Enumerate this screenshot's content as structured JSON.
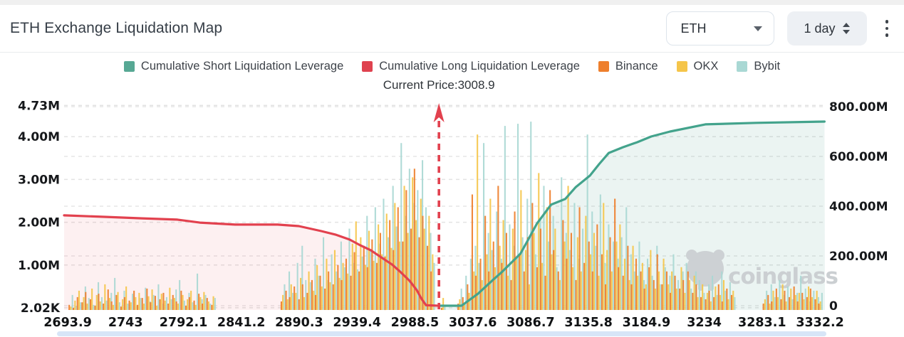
{
  "header": {
    "title": "ETH Exchange Liquidation Map",
    "symbol_select": {
      "value": "ETH"
    },
    "interval_select": {
      "value": "1 day"
    }
  },
  "legend": {
    "items": [
      {
        "label": "Cumulative Short Liquidation Leverage",
        "color": "#57a894"
      },
      {
        "label": "Cumulative Long Liquidation Leverage",
        "color": "#df424f"
      },
      {
        "label": "Binance",
        "color": "#ee7f2d"
      },
      {
        "label": "OKX",
        "color": "#f5c54a"
      },
      {
        "label": "Bybit",
        "color": "#a9d8d4"
      }
    ]
  },
  "current_price_label": "Current Price:3008.9",
  "watermark": "coinglass",
  "chart_data": {
    "type": "mixed-bar-line",
    "title": "ETH Exchange Liquidation Map",
    "current_price": 3008.9,
    "x_axis": {
      "min": 2693.9,
      "max": 3332.2,
      "ticks": [
        2693.9,
        2743,
        2792.1,
        2841.2,
        2890.3,
        2939.4,
        2988.5,
        3037.6,
        3086.7,
        3135.8,
        3184.9,
        3234,
        3283.1,
        3332.2
      ],
      "tick_labels": [
        "2693.9",
        "2743",
        "2792.1",
        "2841.2",
        "2890.3",
        "2939.4",
        "2988.5",
        "3037.6",
        "3086.7",
        "3135.8",
        "3184.9",
        "3234",
        "3283.1",
        "3332.2"
      ]
    },
    "left_axis": {
      "unit": "per-price liquidation leverage",
      "ticks": [
        {
          "label": "4.73M",
          "value": 4.73
        },
        {
          "label": "4.00M",
          "value": 4.0
        },
        {
          "label": "3.00M",
          "value": 3.0
        },
        {
          "label": "2.00M",
          "value": 2.0
        },
        {
          "label": "1.00M",
          "value": 1.0
        },
        {
          "label": "2.02K",
          "value": 0.00202
        }
      ]
    },
    "right_axis": {
      "unit": "cumulative liquidation leverage",
      "ticks": [
        {
          "label": "800.00M",
          "value": 800
        },
        {
          "label": "600.00M",
          "value": 600
        },
        {
          "label": "400.00M",
          "value": 400
        },
        {
          "label": "200.00M",
          "value": 200
        },
        {
          "label": "0",
          "value": 0
        }
      ]
    },
    "series": [
      {
        "name": "Cumulative Short Liquidation Leverage",
        "type": "line",
        "axis": "right",
        "color": "#43a38c",
        "fill": "rgba(87,168,148,0.12)",
        "points": [
          [
            3008.9,
            0
          ],
          [
            3028,
            0
          ],
          [
            3042,
            48
          ],
          [
            3055,
            105
          ],
          [
            3062,
            134
          ],
          [
            3078,
            209
          ],
          [
            3084,
            260
          ],
          [
            3092,
            330
          ],
          [
            3104,
            406
          ],
          [
            3116,
            429
          ],
          [
            3125,
            477
          ],
          [
            3137,
            523
          ],
          [
            3145,
            570
          ],
          [
            3153,
            614
          ],
          [
            3165,
            637
          ],
          [
            3177,
            657
          ],
          [
            3189,
            680
          ],
          [
            3205,
            700
          ],
          [
            3235,
            729
          ],
          [
            3278,
            735
          ],
          [
            3336,
            740
          ]
        ]
      },
      {
        "name": "Cumulative Long Liquidation Leverage",
        "type": "line",
        "axis": "right",
        "color": "#e2414e",
        "fill": "rgba(224,64,78,0.08)",
        "points": [
          [
            2690.9,
            363
          ],
          [
            2727,
            357
          ],
          [
            2757,
            351
          ],
          [
            2787,
            346
          ],
          [
            2806,
            334
          ],
          [
            2836,
            326
          ],
          [
            2872,
            326
          ],
          [
            2890,
            320
          ],
          [
            2909,
            300
          ],
          [
            2921,
            286
          ],
          [
            2933,
            266
          ],
          [
            2942,
            243
          ],
          [
            2951,
            223
          ],
          [
            2960,
            194
          ],
          [
            2969,
            166
          ],
          [
            2976,
            137
          ],
          [
            2984,
            100
          ],
          [
            2990,
            63
          ],
          [
            2994,
            29
          ],
          [
            2998,
            2
          ],
          [
            3008.9,
            0
          ]
        ]
      },
      {
        "name": "Binance",
        "type": "bar",
        "axis": "left",
        "color": "#ee7f2d"
      },
      {
        "name": "OKX",
        "type": "bar",
        "axis": "left",
        "color": "#f5c54a"
      },
      {
        "name": "Bybit",
        "type": "bar",
        "axis": "left",
        "color": "#a9d8d4"
      }
    ],
    "bars_format": [
      "price",
      "binance_M",
      "okx_M",
      "bybit_M"
    ],
    "bars": [
      [
        2696,
        0.12,
        0.08,
        0.35
      ],
      [
        2699.6,
        0.05,
        0.22,
        0.1
      ],
      [
        2703,
        0.3,
        0.45,
        0.18
      ],
      [
        2707,
        0.18,
        0.3,
        0.55
      ],
      [
        2710,
        0.42,
        0.15,
        0.28
      ],
      [
        2714,
        0.25,
        0.5,
        0.12
      ],
      [
        2718,
        0.1,
        0.35,
        0.65
      ],
      [
        2721,
        0.38,
        0.2,
        0.3
      ],
      [
        2725,
        0.15,
        0.6,
        0.22
      ],
      [
        2729,
        0.48,
        0.28,
        0.4
      ],
      [
        2732,
        0.2,
        0.12,
        0.75
      ],
      [
        2736,
        0.35,
        0.42,
        0.18
      ],
      [
        2740,
        0.08,
        0.25,
        0.45
      ],
      [
        2743,
        0.3,
        0.55,
        0.15
      ],
      [
        2747,
        0.22,
        0.18,
        0.38
      ],
      [
        2751,
        0.45,
        0.3,
        0.1
      ],
      [
        2754,
        0.12,
        0.4,
        0.28
      ],
      [
        2758,
        0.28,
        0.15,
        0.52
      ],
      [
        2762,
        0.5,
        0.32,
        0.2
      ],
      [
        2765,
        0.18,
        0.48,
        0.35
      ],
      [
        2769,
        0.33,
        0.1,
        0.6
      ],
      [
        2773,
        0.25,
        0.38,
        0.15
      ],
      [
        2776,
        0.4,
        0.22,
        0.3
      ],
      [
        2780,
        0.15,
        0.52,
        0.25
      ],
      [
        2784,
        0.35,
        0.28,
        0.48
      ],
      [
        2787,
        0.2,
        0.15,
        0.7
      ],
      [
        2791,
        0.45,
        0.35,
        0.22
      ],
      [
        2795,
        0.1,
        0.25,
        0.4
      ],
      [
        2798,
        0.3,
        0.45,
        0.18
      ],
      [
        2802,
        0.22,
        0.12,
        0.85
      ],
      [
        2806,
        0.38,
        0.3,
        0.25
      ],
      [
        2809,
        0.15,
        0.42,
        0.35
      ],
      [
        2813,
        0.28,
        0.2,
        0.15
      ],
      [
        2817,
        0.12,
        0.32,
        0.28
      ],
      [
        2876,
        0.2,
        0.35,
        0.6
      ],
      [
        2880,
        0.45,
        0.25,
        0.9
      ],
      [
        2883,
        0.3,
        0.6,
        0.4
      ],
      [
        2887,
        0.55,
        0.4,
        1.1
      ],
      [
        2891,
        0.25,
        0.75,
        1.5
      ],
      [
        2894,
        0.6,
        0.3,
        0.7
      ],
      [
        2898,
        0.4,
        0.9,
        0.65
      ],
      [
        2902,
        0.7,
        0.45,
        1.2
      ],
      [
        2905,
        0.35,
        1.05,
        0.8
      ],
      [
        2909,
        0.8,
        0.55,
        1.7
      ],
      [
        2913,
        0.5,
        1.2,
        0.7
      ],
      [
        2916,
        0.9,
        0.65,
        1.3
      ],
      [
        2920,
        0.6,
        1.4,
        0.9
      ],
      [
        2924,
        1.05,
        0.75,
        1.6
      ],
      [
        2927,
        0.7,
        1.1,
        1.0
      ],
      [
        2931,
        1.2,
        0.85,
        1.9
      ],
      [
        2935,
        0.8,
        1.55,
        1.1
      ],
      [
        2938,
        1.35,
        2.07,
        0.95
      ],
      [
        2942,
        0.9,
        1.7,
        1.25
      ],
      [
        2946,
        1.5,
        1.05,
        2.2
      ],
      [
        2949,
        1.0,
        1.85,
        1.4
      ],
      [
        2953,
        1.65,
        1.15,
        2.4
      ],
      [
        2957,
        1.1,
        2.0,
        1.55
      ],
      [
        2960,
        1.8,
        1.3,
        2.6
      ],
      [
        2964,
        1.25,
        2.25,
        1.7
      ],
      [
        2968,
        2.1,
        1.45,
        2.9
      ],
      [
        2971,
        1.4,
        2.5,
        1.95
      ],
      [
        2975,
        2.4,
        1.6,
        3.9
      ],
      [
        2979,
        1.6,
        2.9,
        2.2
      ],
      [
        2982,
        2.8,
        1.8,
        3.3
      ],
      [
        2986,
        1.9,
        3.1,
        2.5
      ],
      [
        2989,
        3.3,
        2.1,
        2.8
      ],
      [
        2993,
        1.7,
        2.6,
        3.5
      ],
      [
        2996,
        2.2,
        1.9,
        2.4
      ],
      [
        3000,
        1.5,
        2.2,
        1.8
      ],
      [
        3003,
        0.9,
        1.3,
        1.1
      ],
      [
        3012,
        0.05,
        0.28,
        0.1
      ],
      [
        3026,
        0.15,
        0.25,
        0.5
      ],
      [
        3030,
        0.3,
        0.15,
        0.8
      ],
      [
        3034,
        0.6,
        0.4,
        1.2
      ],
      [
        3038,
        2.7,
        0.9,
        1.5
      ],
      [
        3041,
        0.8,
        4.1,
        1.1
      ],
      [
        3045,
        1.2,
        0.7,
        3.9
      ],
      [
        3049,
        2.2,
        1.3,
        1.8
      ],
      [
        3052,
        0.9,
        2.6,
        1.4
      ],
      [
        3056,
        1.6,
        1.0,
        2.3
      ],
      [
        3060,
        2.9,
        1.5,
        1.2
      ],
      [
        3063,
        1.1,
        2.1,
        4.3
      ],
      [
        3067,
        1.8,
        0.8,
        2.0
      ],
      [
        3071,
        0.7,
        1.9,
        1.5
      ],
      [
        3074,
        2.3,
        1.2,
        4.35
      ],
      [
        3078,
        1.3,
        2.8,
        1.7
      ],
      [
        3082,
        0.9,
        1.4,
        2.6
      ],
      [
        3085,
        1.7,
        0.6,
        4.4
      ],
      [
        3089,
        2.5,
        1.8,
        1.3
      ],
      [
        3093,
        1.0,
        3.2,
        2.1
      ],
      [
        3096,
        1.9,
        1.1,
        2.9
      ],
      [
        3100,
        0.8,
        2.4,
        1.6
      ],
      [
        3104,
        2.8,
        1.3,
        2.2
      ],
      [
        3107,
        1.4,
        1.9,
        1.0
      ],
      [
        3111,
        0.9,
        0.7,
        3.1
      ],
      [
        3115,
        2.1,
        1.6,
        1.8
      ],
      [
        3118,
        1.2,
        2.9,
        1.4
      ],
      [
        3122,
        1.8,
        1.0,
        2.5
      ],
      [
        3126,
        0.7,
        1.7,
        1.2
      ],
      [
        3129,
        2.4,
        0.9,
        1.9
      ],
      [
        3133,
        1.1,
        2.2,
        4.1
      ],
      [
        3137,
        1.6,
        1.3,
        2.3
      ],
      [
        3140,
        0.9,
        1.8,
        1.5
      ],
      [
        3144,
        2.0,
        0.8,
        2.7
      ],
      [
        3148,
        1.3,
        2.5,
        1.1
      ],
      [
        3151,
        0.6,
        1.4,
        2.0
      ],
      [
        3155,
        1.7,
        0.9,
        1.6
      ],
      [
        3159,
        2.6,
        1.6,
        1.2
      ],
      [
        3162,
        1.0,
        2.0,
        1.7
      ],
      [
        3166,
        0.8,
        1.2,
        2.4
      ],
      [
        3170,
        1.5,
        0.7,
        1.3
      ],
      [
        3173,
        0.6,
        1.5,
        0.9
      ],
      [
        3177,
        1.2,
        0.8,
        1.6
      ],
      [
        3181,
        0.9,
        1.1,
        0.7
      ],
      [
        3184,
        0.5,
        0.6,
        1.2
      ],
      [
        3188,
        1.0,
        1.4,
        0.8
      ],
      [
        3192,
        0.7,
        0.5,
        1.5
      ],
      [
        3195,
        1.3,
        0.9,
        0.6
      ],
      [
        3199,
        0.6,
        1.2,
        1.0
      ],
      [
        3203,
        0.9,
        0.6,
        0.8
      ],
      [
        3206,
        0.4,
        0.9,
        1.3
      ],
      [
        3210,
        0.8,
        0.5,
        0.7
      ],
      [
        3214,
        0.5,
        1.0,
        0.9
      ],
      [
        3217,
        0.7,
        0.4,
        1.1
      ],
      [
        3221,
        0.9,
        0.7,
        0.5
      ],
      [
        3225,
        0.4,
        0.8,
        0.9
      ],
      [
        3228,
        0.6,
        0.3,
        0.7
      ],
      [
        3232,
        0.3,
        0.6,
        0.4
      ],
      [
        3236,
        0.25,
        0.4,
        0.6
      ],
      [
        3239,
        0.45,
        0.2,
        0.8
      ],
      [
        3243,
        0.3,
        0.55,
        0.35
      ],
      [
        3247,
        0.6,
        0.35,
        0.9
      ],
      [
        3250,
        0.2,
        0.7,
        0.45
      ],
      [
        3254,
        0.5,
        0.25,
        0.65
      ],
      [
        3258,
        0.35,
        0.45,
        0.3
      ],
      [
        3285,
        0.15,
        0.25,
        0.45
      ],
      [
        3289,
        0.35,
        0.15,
        0.6
      ],
      [
        3292,
        0.2,
        0.45,
        0.3
      ],
      [
        3296,
        0.5,
        0.3,
        0.7
      ],
      [
        3300,
        0.25,
        0.6,
        0.35
      ],
      [
        3303,
        0.45,
        0.2,
        0.55
      ],
      [
        3307,
        0.3,
        0.5,
        0.25
      ],
      [
        3311,
        0.55,
        0.35,
        0.4
      ],
      [
        3314,
        0.2,
        0.4,
        0.8
      ],
      [
        3318,
        0.4,
        0.25,
        0.5
      ],
      [
        3322,
        0.3,
        0.55,
        0.2
      ],
      [
        3325,
        0.5,
        0.3,
        0.45
      ],
      [
        3329,
        0.25,
        0.45,
        0.3
      ],
      [
        3332,
        0.15,
        0.2,
        0.4
      ]
    ],
    "annotations": [
      {
        "text": "Current Price:3008.9",
        "price": 3008.9
      }
    ],
    "grid": "dashed-horizontal",
    "legend_position": "top-center"
  }
}
